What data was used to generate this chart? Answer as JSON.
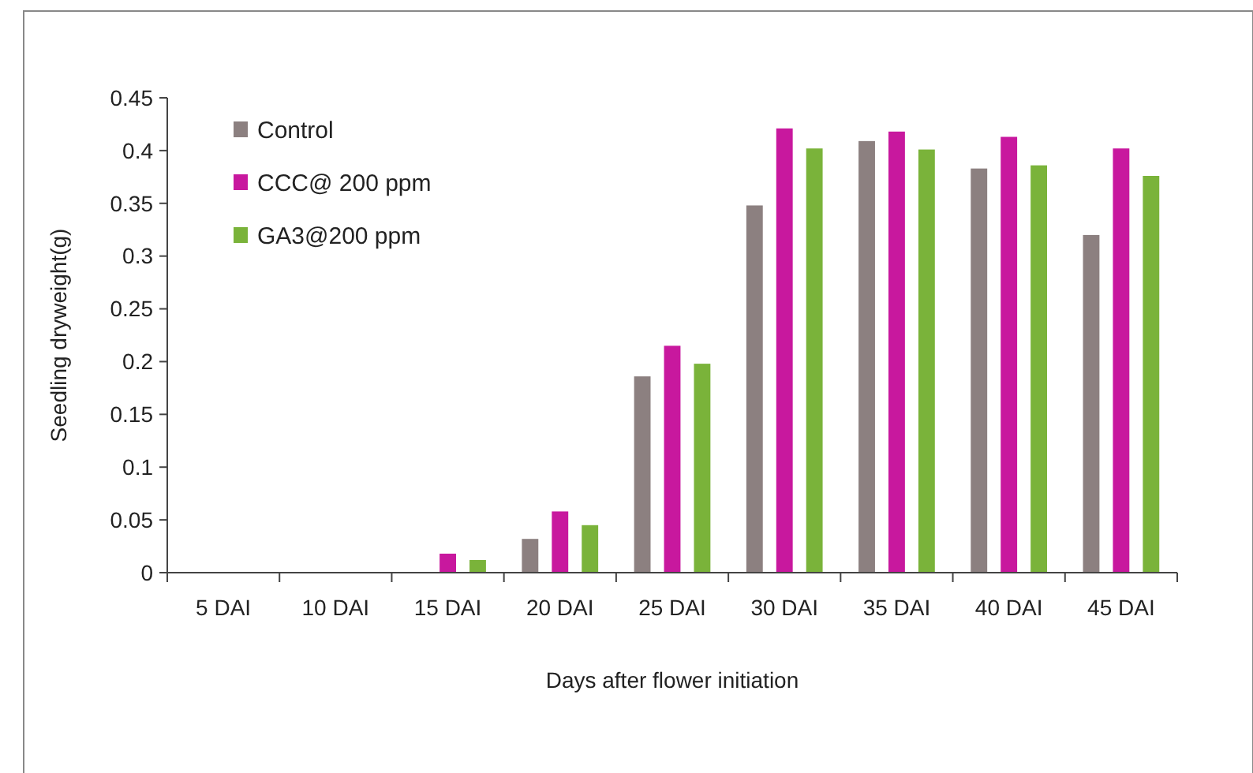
{
  "chart_data": {
    "type": "bar",
    "xlabel": "Days after flower initiation",
    "ylabel": "Seedling dryweight(g)",
    "categories": [
      "5 DAI",
      "10 DAI",
      "15 DAI",
      "20 DAI",
      "25 DAI",
      "30 DAI",
      "35 DAI",
      "40 DAI",
      "45 DAI"
    ],
    "series": [
      {
        "name": "Control",
        "color": "#8c8080",
        "values": [
          0,
          0,
          0,
          0.032,
          0.186,
          0.348,
          0.409,
          0.383,
          0.32
        ]
      },
      {
        "name": "CCC@ 200 ppm",
        "color": "#c8189e",
        "values": [
          0,
          0,
          0.018,
          0.058,
          0.215,
          0.421,
          0.418,
          0.413,
          0.402
        ]
      },
      {
        "name": "GA3@200 ppm",
        "color": "#7ab33a",
        "values": [
          0,
          0,
          0.012,
          0.045,
          0.198,
          0.402,
          0.401,
          0.386,
          0.376
        ]
      }
    ],
    "ylim": [
      0,
      0.45
    ],
    "yticks": [
      0,
      0.05,
      0.1,
      0.15,
      0.2,
      0.25,
      0.3,
      0.35,
      0.4,
      0.45
    ],
    "grid": false,
    "legend": "top left"
  }
}
